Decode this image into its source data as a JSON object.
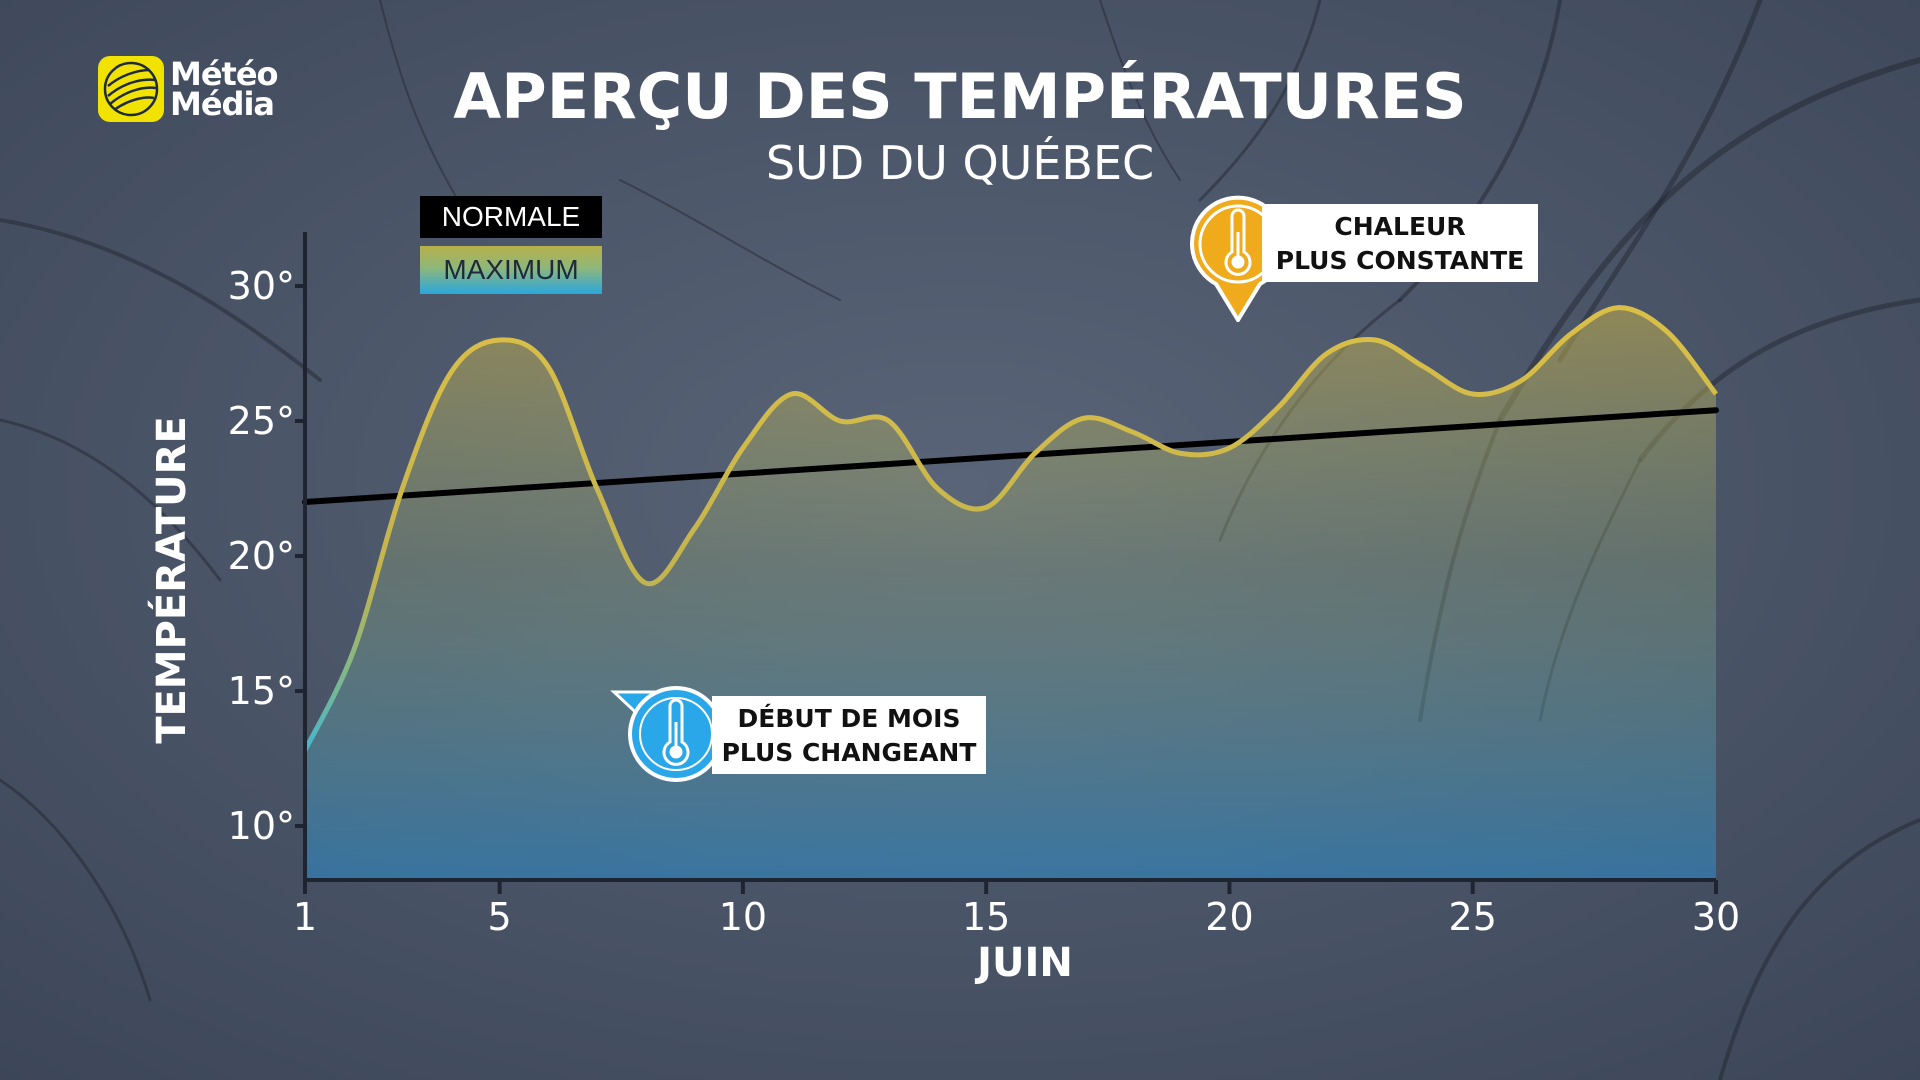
{
  "brand": {
    "line1": "Météo",
    "line2": "Média",
    "logo_color": "#f2e200"
  },
  "title": "APERÇU DES TEMPÉRATURES",
  "subtitle": "SUD DU QUÉBEC",
  "legend": [
    {
      "label": "NORMALE",
      "color": "#000000"
    },
    {
      "label": "MAXIMUM",
      "color": "#b7b04a"
    }
  ],
  "callouts": {
    "heat": {
      "line1": "CHALEUR",
      "line2": "PLUS CONSTANTE",
      "icon": "thermometer-icon",
      "color": "#f0ab1c"
    },
    "change": {
      "line1": "DÉBUT DE MOIS",
      "line2": "PLUS CHANGEANT",
      "icon": "thermometer-icon",
      "color": "#2aa7e8"
    }
  },
  "chart_data": {
    "type": "line",
    "xlabel": "JUIN",
    "ylabel": "TEMPÉRATURE",
    "xlim": [
      1,
      30
    ],
    "ylim": [
      8,
      32
    ],
    "x_ticks": [
      1,
      5,
      10,
      15,
      20,
      25,
      30
    ],
    "x_tick_labels": [
      "1",
      "5",
      "10",
      "15",
      "20",
      "25",
      "30"
    ],
    "y_ticks": [
      10,
      15,
      20,
      25,
      30
    ],
    "y_tick_labels": [
      "10°",
      "15°",
      "20°",
      "25°",
      "30°"
    ],
    "grid": false,
    "legend_position": "top-left",
    "series": [
      {
        "name": "NORMALE",
        "color": "#000000",
        "x": [
          1,
          30
        ],
        "values": [
          22.0,
          25.4
        ]
      },
      {
        "name": "MAXIMUM",
        "color": "#d9bf45",
        "fill": true,
        "x": [
          1,
          2,
          3,
          4,
          5,
          6,
          7,
          8,
          9,
          10,
          11,
          12,
          13,
          14,
          15,
          16,
          17,
          18,
          19,
          20,
          21,
          22,
          23,
          24,
          25,
          26,
          27,
          28,
          29,
          30
        ],
        "values": [
          12.8,
          16.5,
          22.5,
          26.8,
          28.0,
          27.0,
          22.5,
          19.0,
          21.0,
          24.0,
          26.0,
          25.0,
          25.0,
          22.5,
          21.8,
          23.8,
          25.1,
          24.6,
          23.8,
          24.0,
          25.5,
          27.5,
          28.0,
          27.0,
          26.0,
          26.5,
          28.2,
          29.2,
          28.3,
          26.0
        ]
      }
    ]
  }
}
